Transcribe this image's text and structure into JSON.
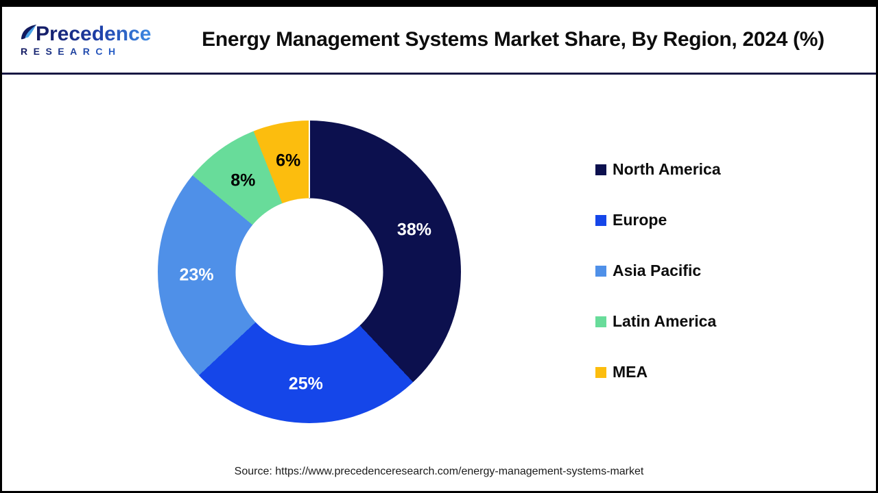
{
  "header": {
    "logo": {
      "name": "Precedence",
      "subname": "RESEARCH"
    },
    "title": "Energy Management Systems Market Share, By Region, 2024 (%)"
  },
  "chart_data": {
    "type": "pie",
    "subtype": "donut",
    "title": "Energy Management Systems Market Share, By Region, 2024 (%)",
    "start_angle_deg": 0,
    "direction": "clockwise",
    "inner_radius_ratio": 0.49,
    "categories": [
      "North America",
      "Europe",
      "Asia Pacific",
      "Latin America",
      "MEA"
    ],
    "values": [
      38,
      25,
      23,
      8,
      6
    ],
    "unit": "%",
    "slice_labels": [
      "38%",
      "25%",
      "23%",
      "8%",
      "6%"
    ],
    "slice_label_colors": [
      "#ffffff",
      "#ffffff",
      "#ffffff",
      "#000000",
      "#000000"
    ],
    "colors": [
      "#0c104e",
      "#1546e9",
      "#4f90e8",
      "#68dc9a",
      "#fcbd0e"
    ],
    "legend_position": "right",
    "background": "#ffffff"
  },
  "source": {
    "text": "Source: https://www.precedenceresearch.com/energy-management-systems-market"
  }
}
